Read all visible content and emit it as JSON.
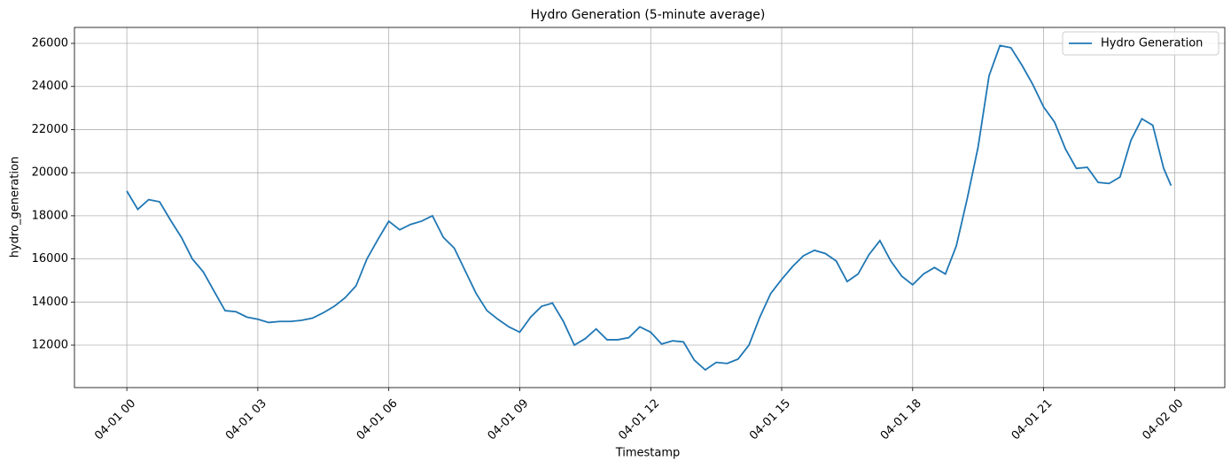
{
  "chart_data": {
    "type": "line",
    "title": "Hydro Generation (5-minute average)",
    "xlabel": "Timestamp",
    "ylabel": "hydro_generation",
    "xlim": [
      -1.2,
      25.15
    ],
    "ylim": [
      10030,
      26740
    ],
    "xticks": [
      {
        "value": 0,
        "label": "04-01 00"
      },
      {
        "value": 3,
        "label": "04-01 03"
      },
      {
        "value": 6,
        "label": "04-01 06"
      },
      {
        "value": 9,
        "label": "04-01 09"
      },
      {
        "value": 12,
        "label": "04-01 12"
      },
      {
        "value": 15,
        "label": "04-01 15"
      },
      {
        "value": 18,
        "label": "04-01 18"
      },
      {
        "value": 21,
        "label": "04-01 21"
      },
      {
        "value": 24,
        "label": "04-02 00"
      }
    ],
    "yticks": [
      12000,
      14000,
      16000,
      18000,
      20000,
      22000,
      24000,
      26000
    ],
    "grid": true,
    "legend": "upper right",
    "x": [
      0,
      0.25,
      0.5,
      0.75,
      1,
      1.25,
      1.5,
      1.75,
      2,
      2.25,
      2.5,
      2.75,
      3,
      3.25,
      3.5,
      3.75,
      4,
      4.25,
      4.5,
      4.75,
      5,
      5.25,
      5.5,
      5.75,
      6,
      6.25,
      6.5,
      6.75,
      7,
      7.25,
      7.5,
      7.75,
      8,
      8.25,
      8.5,
      8.75,
      9,
      9.25,
      9.5,
      9.75,
      10,
      10.25,
      10.5,
      10.75,
      11,
      11.25,
      11.5,
      11.75,
      12,
      12.25,
      12.5,
      12.75,
      13,
      13.25,
      13.5,
      13.75,
      14,
      14.25,
      14.5,
      14.75,
      15,
      15.25,
      15.5,
      15.75,
      16,
      16.25,
      16.5,
      16.75,
      17,
      17.25,
      17.5,
      17.75,
      18,
      18.25,
      18.5,
      18.75,
      19,
      19.25,
      19.5,
      19.75,
      20,
      20.25,
      20.5,
      20.75,
      21,
      21.25,
      21.5,
      21.75,
      22,
      22.25,
      22.5,
      22.75,
      23,
      23.25,
      23.5,
      23.75,
      23.92
    ],
    "series": [
      {
        "name": "Hydro Generation",
        "color": "#1f77b4",
        "values": [
          19150,
          18300,
          18750,
          18650,
          17800,
          17000,
          16000,
          15400,
          14500,
          13600,
          13550,
          13300,
          13200,
          13050,
          13100,
          13100,
          13150,
          13250,
          13500,
          13800,
          14200,
          14750,
          16000,
          16900,
          17750,
          17350,
          17600,
          17750,
          18000,
          17000,
          16500,
          15450,
          14400,
          13600,
          13200,
          12850,
          12600,
          13300,
          13800,
          13950,
          13100,
          12000,
          12300,
          12750,
          12250,
          12250,
          12350,
          12850,
          12600,
          12050,
          12200,
          12150,
          11300,
          10850,
          11200,
          11150,
          11350,
          12000,
          13300,
          14400,
          15050,
          15650,
          16150,
          16400,
          16250,
          15900,
          14950,
          15300,
          16200,
          16850,
          15900,
          15200,
          14800,
          15300,
          15600,
          15300,
          16600,
          18800,
          21200,
          24500,
          25900,
          25800,
          25000,
          24100,
          23050,
          22350,
          21100,
          20200,
          20250,
          19550,
          19500,
          19800,
          21500,
          22500,
          22200,
          20200,
          19400
        ]
      }
    ]
  }
}
